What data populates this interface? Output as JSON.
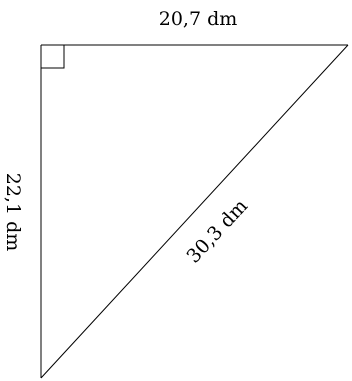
{
  "diagram": {
    "top_side_label": "20,7 dm",
    "left_side_label": "22,1 dm",
    "hypotenuse_label": "30,3 dm",
    "right_angle_marker": "square-corner"
  }
}
